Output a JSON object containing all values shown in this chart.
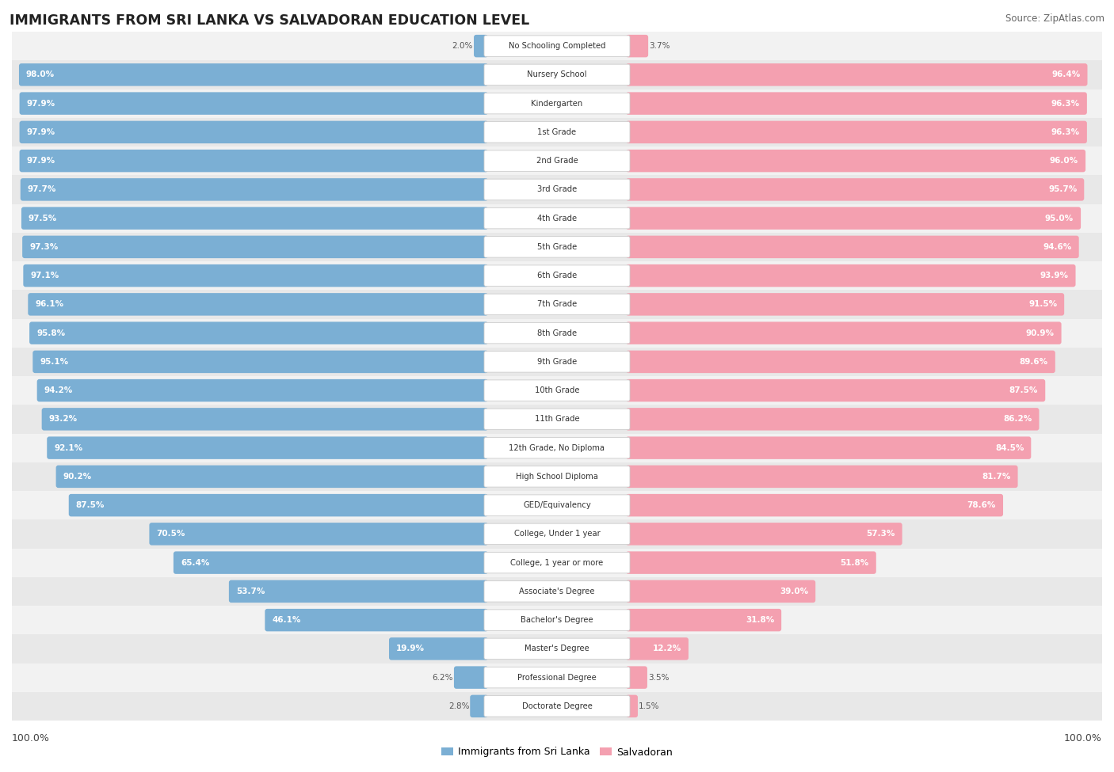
{
  "title": "IMMIGRANTS FROM SRI LANKA VS SALVADORAN EDUCATION LEVEL",
  "source": "Source: ZipAtlas.com",
  "categories": [
    "No Schooling Completed",
    "Nursery School",
    "Kindergarten",
    "1st Grade",
    "2nd Grade",
    "3rd Grade",
    "4th Grade",
    "5th Grade",
    "6th Grade",
    "7th Grade",
    "8th Grade",
    "9th Grade",
    "10th Grade",
    "11th Grade",
    "12th Grade, No Diploma",
    "High School Diploma",
    "GED/Equivalency",
    "College, Under 1 year",
    "College, 1 year or more",
    "Associate's Degree",
    "Bachelor's Degree",
    "Master's Degree",
    "Professional Degree",
    "Doctorate Degree"
  ],
  "sri_lanka_values": [
    2.0,
    98.0,
    97.9,
    97.9,
    97.9,
    97.7,
    97.5,
    97.3,
    97.1,
    96.1,
    95.8,
    95.1,
    94.2,
    93.2,
    92.1,
    90.2,
    87.5,
    70.5,
    65.4,
    53.7,
    46.1,
    19.9,
    6.2,
    2.8
  ],
  "salvadoran_values": [
    3.7,
    96.4,
    96.3,
    96.3,
    96.0,
    95.7,
    95.0,
    94.6,
    93.9,
    91.5,
    90.9,
    89.6,
    87.5,
    86.2,
    84.5,
    81.7,
    78.6,
    57.3,
    51.8,
    39.0,
    31.8,
    12.2,
    3.5,
    1.5
  ],
  "sri_lanka_color": "#7bafd4",
  "salvadoran_color": "#f4a0b0",
  "legend_sri_lanka": "Immigrants from Sri Lanka",
  "legend_salvadoran": "Salvadoran",
  "left_label": "100.0%",
  "right_label": "100.0%"
}
